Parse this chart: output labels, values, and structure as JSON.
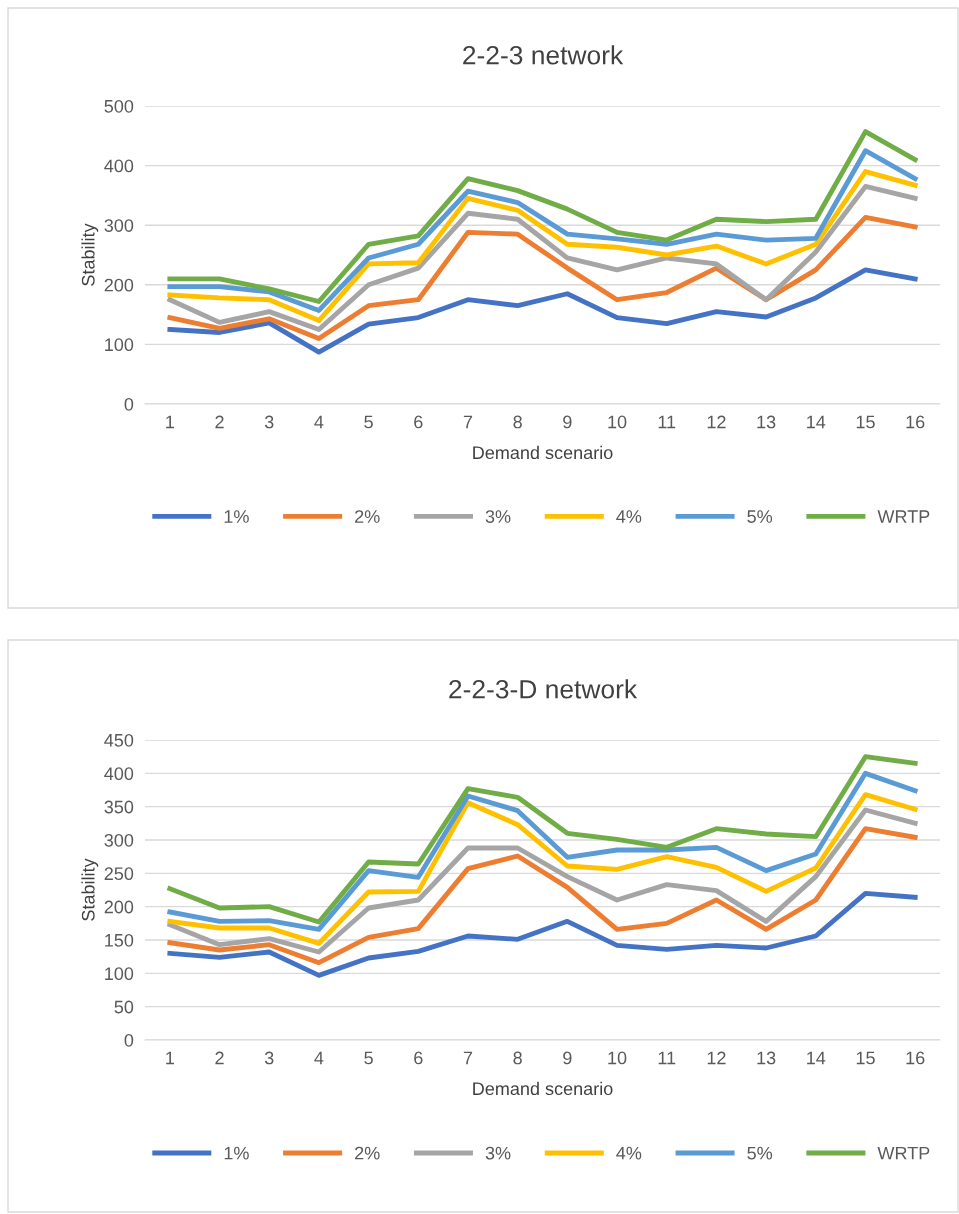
{
  "chart_data": [
    {
      "type": "line",
      "title": "2-2-3 network",
      "xlabel": "Demand scenario",
      "ylabel": "Stability",
      "categories": [
        "1",
        "2",
        "3",
        "4",
        "5",
        "6",
        "7",
        "8",
        "9",
        "10",
        "11",
        "12",
        "13",
        "14",
        "15",
        "16"
      ],
      "ylim": [
        0,
        500
      ],
      "yticks": [
        0,
        100,
        200,
        300,
        400,
        500
      ],
      "grid": "y",
      "legend": "bottom",
      "marker": "none",
      "line_style": "solid",
      "series": [
        {
          "name": "1%",
          "color": "#4472c4",
          "values": [
            125,
            120,
            136,
            87,
            134,
            145,
            175,
            165,
            185,
            145,
            135,
            155,
            146,
            178,
            225,
            210
          ]
        },
        {
          "name": "2%",
          "color": "#ed7d31",
          "values": [
            145,
            127,
            143,
            110,
            165,
            175,
            288,
            285,
            228,
            175,
            187,
            228,
            175,
            225,
            313,
            297
          ]
        },
        {
          "name": "3%",
          "color": "#a5a5a5",
          "values": [
            175,
            137,
            155,
            125,
            200,
            228,
            320,
            310,
            245,
            225,
            245,
            235,
            175,
            255,
            365,
            345
          ]
        },
        {
          "name": "4%",
          "color": "#ffc000",
          "values": [
            183,
            178,
            175,
            140,
            235,
            237,
            345,
            325,
            268,
            263,
            250,
            265,
            235,
            268,
            390,
            367
          ]
        },
        {
          "name": "5%",
          "color": "#5b9bd5",
          "values": [
            197,
            197,
            188,
            157,
            245,
            268,
            357,
            338,
            285,
            277,
            268,
            285,
            275,
            278,
            425,
            378
          ]
        },
        {
          "name": "WRTP",
          "color": "#70ad47",
          "values": [
            210,
            210,
            193,
            172,
            268,
            282,
            378,
            358,
            327,
            288,
            275,
            310,
            306,
            310,
            457,
            410
          ]
        }
      ]
    },
    {
      "type": "line",
      "title": "2-2-3-D network",
      "xlabel": "Demand scenario",
      "ylabel": "Stability",
      "categories": [
        "1",
        "2",
        "3",
        "4",
        "5",
        "6",
        "7",
        "8",
        "9",
        "10",
        "11",
        "12",
        "13",
        "14",
        "15",
        "16"
      ],
      "ylim": [
        0,
        450
      ],
      "yticks": [
        0,
        50,
        100,
        150,
        200,
        250,
        300,
        350,
        400,
        450
      ],
      "grid": "y",
      "legend": "bottom",
      "marker": "none",
      "line_style": "solid",
      "series": [
        {
          "name": "1%",
          "color": "#4472c4",
          "values": [
            130,
            124,
            132,
            97,
            123,
            133,
            156,
            151,
            178,
            142,
            136,
            142,
            138,
            156,
            220,
            214
          ]
        },
        {
          "name": "2%",
          "color": "#ed7d31",
          "values": [
            146,
            135,
            143,
            116,
            154,
            167,
            257,
            276,
            229,
            166,
            175,
            210,
            166,
            210,
            317,
            304
          ]
        },
        {
          "name": "3%",
          "color": "#a5a5a5",
          "values": [
            173,
            143,
            152,
            132,
            198,
            210,
            288,
            288,
            245,
            210,
            233,
            224,
            178,
            245,
            345,
            325
          ]
        },
        {
          "name": "4%",
          "color": "#ffc000",
          "values": [
            178,
            168,
            168,
            145,
            222,
            223,
            356,
            323,
            261,
            256,
            275,
            259,
            223,
            258,
            368,
            346
          ]
        },
        {
          "name": "5%",
          "color": "#5b9bd5",
          "values": [
            192,
            178,
            179,
            166,
            254,
            244,
            366,
            344,
            274,
            285,
            285,
            289,
            254,
            279,
            400,
            374
          ]
        },
        {
          "name": "WRTP",
          "color": "#70ad47",
          "values": [
            227,
            198,
            200,
            177,
            267,
            264,
            377,
            364,
            310,
            301,
            289,
            317,
            309,
            305,
            425,
            415
          ]
        }
      ]
    }
  ]
}
